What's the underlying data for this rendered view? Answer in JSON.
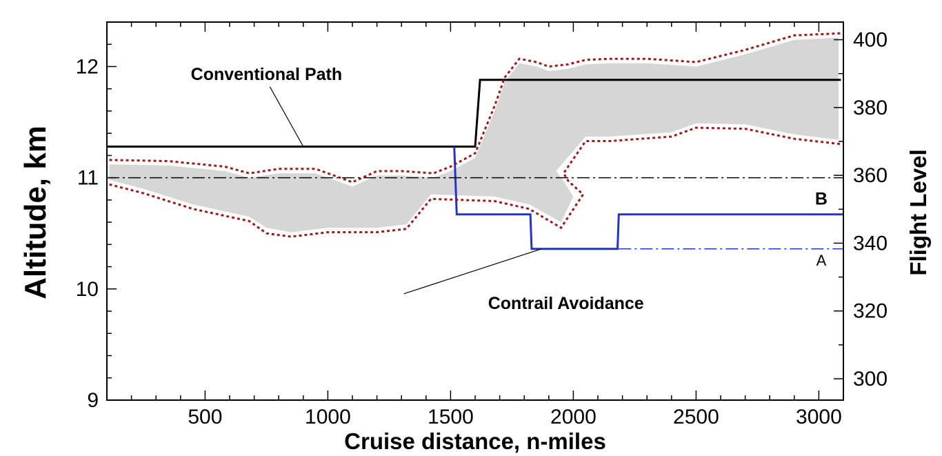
{
  "chart_data": {
    "type": "line",
    "xlabel": "Cruise distance, n-miles",
    "ylabel": "Altitude, km",
    "y2label": "Flight Level",
    "xlim": [
      100,
      3100
    ],
    "ylim": [
      9,
      12.4
    ],
    "y2lim": [
      293.7,
      405.2
    ],
    "x_ticks": [
      500,
      1000,
      1500,
      2000,
      2500,
      3000
    ],
    "y_ticks": [
      9,
      10,
      11,
      12
    ],
    "y2_ticks": [
      300,
      320,
      340,
      360,
      380,
      400
    ],
    "grid": false,
    "series": [
      {
        "name": "Conventional Path",
        "color": "#000000",
        "x": [
          100,
          1600,
          1620,
          3090
        ],
        "y": [
          11.28,
          11.28,
          11.88,
          11.88
        ]
      },
      {
        "name": "Contrail Avoidance",
        "color": "#2233cc",
        "x": [
          1515,
          1525,
          1825,
          1830,
          2180,
          2185,
          3100
        ],
        "y": [
          11.28,
          10.67,
          10.67,
          10.36,
          10.36,
          10.67,
          10.67
        ]
      },
      {
        "name": "A",
        "color": "#2233cc",
        "style": "dashdot",
        "x": [
          2185,
          3100
        ],
        "y": [
          10.36,
          10.36
        ]
      },
      {
        "name": "",
        "color": "#000000",
        "style": "dashdot",
        "x": [
          100,
          3100
        ],
        "y": [
          11.0,
          11.0
        ]
      },
      {
        "name": "",
        "color": "#a01818",
        "style": "dotted",
        "x": [
          110,
          350,
          580,
          680,
          800,
          950,
          1000,
          1100,
          1200,
          1300,
          1430,
          1500,
          1600,
          1680,
          1720,
          1780,
          1850,
          1900,
          1980,
          2050,
          2150,
          2300,
          2500,
          2700,
          2900,
          3100
        ],
        "y": [
          11.16,
          11.15,
          11.1,
          11.04,
          11.08,
          11.08,
          11.04,
          10.96,
          11.06,
          11.06,
          11.04,
          11.1,
          11.22,
          11.65,
          11.9,
          12.07,
          12.04,
          12.0,
          12.02,
          12.06,
          12.07,
          12.07,
          12.04,
          12.15,
          12.28,
          12.3
        ]
      },
      {
        "name": "",
        "color": "#a01818",
        "style": "dotted",
        "x": [
          110,
          250,
          450,
          680,
          750,
          850,
          1000,
          1100,
          1200,
          1320,
          1420,
          1550,
          1680,
          1820,
          1950,
          2040,
          1980,
          1960,
          2050,
          2150,
          2400,
          2500,
          2700,
          2900,
          3100
        ],
        "y": [
          10.94,
          10.86,
          10.72,
          10.61,
          10.5,
          10.47,
          10.51,
          10.51,
          10.51,
          10.54,
          10.81,
          10.8,
          10.79,
          10.72,
          10.55,
          10.85,
          10.97,
          11.04,
          11.33,
          11.33,
          11.37,
          11.45,
          11.44,
          11.35,
          11.3
        ]
      }
    ],
    "shaded_region": {
      "name": "",
      "color": "#d6d6d6",
      "upper": {
        "x": [
          110,
          350,
          580,
          680,
          800,
          950,
          1000,
          1100,
          1200,
          1300,
          1430,
          1500,
          1600,
          1680,
          1720,
          1780,
          1850,
          1900,
          1980,
          2050,
          2150,
          2300,
          2500,
          2700,
          2900,
          3080
        ],
        "y": [
          11.12,
          11.11,
          11.06,
          11.0,
          11.04,
          11.04,
          11.0,
          10.92,
          11.02,
          11.02,
          11.0,
          11.06,
          11.18,
          11.6,
          11.86,
          12.03,
          12.0,
          11.96,
          11.98,
          12.02,
          12.03,
          12.03,
          12.0,
          12.11,
          12.24,
          12.26
        ]
      },
      "lower": {
        "x": [
          110,
          250,
          450,
          680,
          750,
          850,
          1000,
          1100,
          1200,
          1320,
          1420,
          1550,
          1680,
          1820,
          1950,
          2000,
          1960,
          1930,
          2050,
          2150,
          2400,
          2500,
          2700,
          2900,
          3080
        ],
        "y": [
          10.98,
          10.9,
          10.76,
          10.65,
          10.55,
          10.51,
          10.55,
          10.55,
          10.55,
          10.58,
          10.85,
          10.84,
          10.83,
          10.76,
          10.6,
          10.83,
          10.97,
          11.06,
          11.37,
          11.37,
          11.41,
          11.49,
          11.48,
          11.39,
          11.34
        ]
      }
    },
    "annotations": [
      {
        "text": "Conventional Path",
        "x": 750,
        "y": 11.88,
        "target_x": 900,
        "target_y": 11.28
      },
      {
        "text": "Contrail Avoidance",
        "x": 1970,
        "y": 9.82,
        "target_x": 1870,
        "target_y": 10.36
      },
      {
        "text": "B",
        "x": 3010,
        "y": 10.81
      },
      {
        "text": "A",
        "x": 3010,
        "y": 10.26
      }
    ]
  }
}
